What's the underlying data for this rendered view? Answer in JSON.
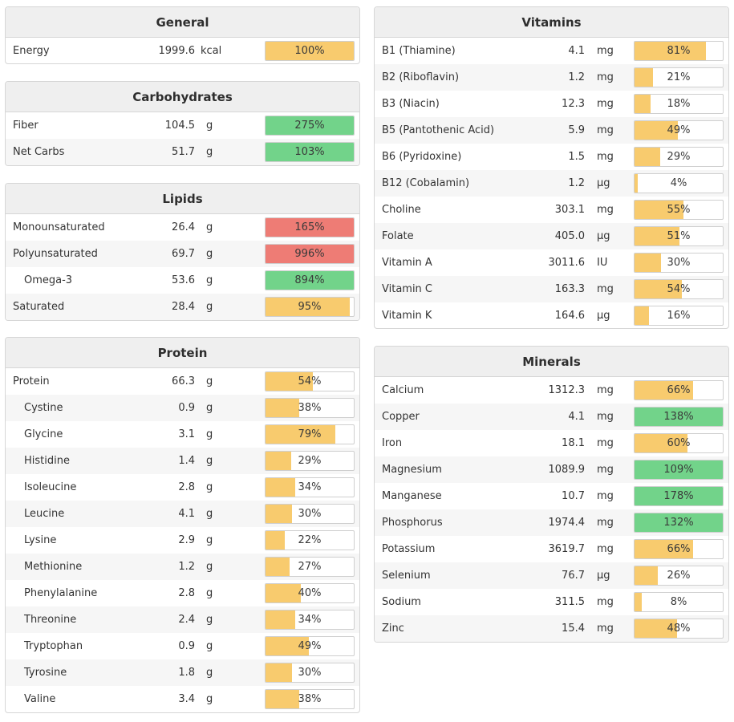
{
  "colors": {
    "yellow": "#f8cb6e",
    "green": "#72d38a",
    "red": "#ee7c75"
  },
  "general": {
    "title": "General",
    "rows": [
      {
        "name": "Energy",
        "amount": "1999.6",
        "unit": "kcal",
        "pct": "100%",
        "fill": 100,
        "color": "yellow"
      }
    ]
  },
  "carbohydrates": {
    "title": "Carbohydrates",
    "rows": [
      {
        "name": "Fiber",
        "amount": "104.5",
        "unit": "g",
        "pct": "275%",
        "fill": 100,
        "color": "green"
      },
      {
        "name": "Net Carbs",
        "amount": "51.7",
        "unit": "g",
        "pct": "103%",
        "fill": 100,
        "color": "green"
      }
    ]
  },
  "lipids": {
    "title": "Lipids",
    "rows": [
      {
        "name": "Monounsaturated",
        "amount": "26.4",
        "unit": "g",
        "pct": "165%",
        "fill": 100,
        "color": "red"
      },
      {
        "name": "Polyunsaturated",
        "amount": "69.7",
        "unit": "g",
        "pct": "996%",
        "fill": 100,
        "color": "red"
      },
      {
        "name": "Omega-3",
        "amount": "53.6",
        "unit": "g",
        "pct": "894%",
        "fill": 100,
        "color": "green",
        "indent": true
      },
      {
        "name": "Saturated",
        "amount": "28.4",
        "unit": "g",
        "pct": "95%",
        "fill": 95,
        "color": "yellow"
      }
    ]
  },
  "protein": {
    "title": "Protein",
    "rows": [
      {
        "name": "Protein",
        "amount": "66.3",
        "unit": "g",
        "pct": "54%",
        "fill": 54,
        "color": "yellow"
      },
      {
        "name": "Cystine",
        "amount": "0.9",
        "unit": "g",
        "pct": "38%",
        "fill": 38,
        "color": "yellow",
        "indent": true
      },
      {
        "name": "Glycine",
        "amount": "3.1",
        "unit": "g",
        "pct": "79%",
        "fill": 79,
        "color": "yellow",
        "indent": true
      },
      {
        "name": "Histidine",
        "amount": "1.4",
        "unit": "g",
        "pct": "29%",
        "fill": 29,
        "color": "yellow",
        "indent": true
      },
      {
        "name": "Isoleucine",
        "amount": "2.8",
        "unit": "g",
        "pct": "34%",
        "fill": 34,
        "color": "yellow",
        "indent": true
      },
      {
        "name": "Leucine",
        "amount": "4.1",
        "unit": "g",
        "pct": "30%",
        "fill": 30,
        "color": "yellow",
        "indent": true
      },
      {
        "name": "Lysine",
        "amount": "2.9",
        "unit": "g",
        "pct": "22%",
        "fill": 22,
        "color": "yellow",
        "indent": true
      },
      {
        "name": "Methionine",
        "amount": "1.2",
        "unit": "g",
        "pct": "27%",
        "fill": 27,
        "color": "yellow",
        "indent": true
      },
      {
        "name": "Phenylalanine",
        "amount": "2.8",
        "unit": "g",
        "pct": "40%",
        "fill": 40,
        "color": "yellow",
        "indent": true
      },
      {
        "name": "Threonine",
        "amount": "2.4",
        "unit": "g",
        "pct": "34%",
        "fill": 34,
        "color": "yellow",
        "indent": true
      },
      {
        "name": "Tryptophan",
        "amount": "0.9",
        "unit": "g",
        "pct": "49%",
        "fill": 49,
        "color": "yellow",
        "indent": true
      },
      {
        "name": "Tyrosine",
        "amount": "1.8",
        "unit": "g",
        "pct": "30%",
        "fill": 30,
        "color": "yellow",
        "indent": true
      },
      {
        "name": "Valine",
        "amount": "3.4",
        "unit": "g",
        "pct": "38%",
        "fill": 38,
        "color": "yellow",
        "indent": true
      }
    ]
  },
  "vitamins": {
    "title": "Vitamins",
    "rows": [
      {
        "name": "B1 (Thiamine)",
        "amount": "4.1",
        "unit": "mg",
        "pct": "81%",
        "fill": 81,
        "color": "yellow"
      },
      {
        "name": "B2 (Riboflavin)",
        "amount": "1.2",
        "unit": "mg",
        "pct": "21%",
        "fill": 21,
        "color": "yellow"
      },
      {
        "name": "B3 (Niacin)",
        "amount": "12.3",
        "unit": "mg",
        "pct": "18%",
        "fill": 18,
        "color": "yellow"
      },
      {
        "name": "B5 (Pantothenic Acid)",
        "amount": "5.9",
        "unit": "mg",
        "pct": "49%",
        "fill": 49,
        "color": "yellow"
      },
      {
        "name": "B6 (Pyridoxine)",
        "amount": "1.5",
        "unit": "mg",
        "pct": "29%",
        "fill": 29,
        "color": "yellow"
      },
      {
        "name": "B12 (Cobalamin)",
        "amount": "1.2",
        "unit": "µg",
        "pct": "4%",
        "fill": 4,
        "color": "yellow"
      },
      {
        "name": "Choline",
        "amount": "303.1",
        "unit": "mg",
        "pct": "55%",
        "fill": 55,
        "color": "yellow"
      },
      {
        "name": "Folate",
        "amount": "405.0",
        "unit": "µg",
        "pct": "51%",
        "fill": 51,
        "color": "yellow"
      },
      {
        "name": "Vitamin A",
        "amount": "3011.6",
        "unit": "IU",
        "pct": "30%",
        "fill": 30,
        "color": "yellow"
      },
      {
        "name": "Vitamin C",
        "amount": "163.3",
        "unit": "mg",
        "pct": "54%",
        "fill": 54,
        "color": "yellow"
      },
      {
        "name": "Vitamin K",
        "amount": "164.6",
        "unit": "µg",
        "pct": "16%",
        "fill": 16,
        "color": "yellow"
      }
    ]
  },
  "minerals": {
    "title": "Minerals",
    "rows": [
      {
        "name": "Calcium",
        "amount": "1312.3",
        "unit": "mg",
        "pct": "66%",
        "fill": 66,
        "color": "yellow"
      },
      {
        "name": "Copper",
        "amount": "4.1",
        "unit": "mg",
        "pct": "138%",
        "fill": 100,
        "color": "green"
      },
      {
        "name": "Iron",
        "amount": "18.1",
        "unit": "mg",
        "pct": "60%",
        "fill": 60,
        "color": "yellow"
      },
      {
        "name": "Magnesium",
        "amount": "1089.9",
        "unit": "mg",
        "pct": "109%",
        "fill": 100,
        "color": "green"
      },
      {
        "name": "Manganese",
        "amount": "10.7",
        "unit": "mg",
        "pct": "178%",
        "fill": 100,
        "color": "green"
      },
      {
        "name": "Phosphorus",
        "amount": "1974.4",
        "unit": "mg",
        "pct": "132%",
        "fill": 100,
        "color": "green"
      },
      {
        "name": "Potassium",
        "amount": "3619.7",
        "unit": "mg",
        "pct": "66%",
        "fill": 66,
        "color": "yellow"
      },
      {
        "name": "Selenium",
        "amount": "76.7",
        "unit": "µg",
        "pct": "26%",
        "fill": 26,
        "color": "yellow"
      },
      {
        "name": "Sodium",
        "amount": "311.5",
        "unit": "mg",
        "pct": "8%",
        "fill": 8,
        "color": "yellow"
      },
      {
        "name": "Zinc",
        "amount": "15.4",
        "unit": "mg",
        "pct": "48%",
        "fill": 48,
        "color": "yellow"
      }
    ]
  }
}
